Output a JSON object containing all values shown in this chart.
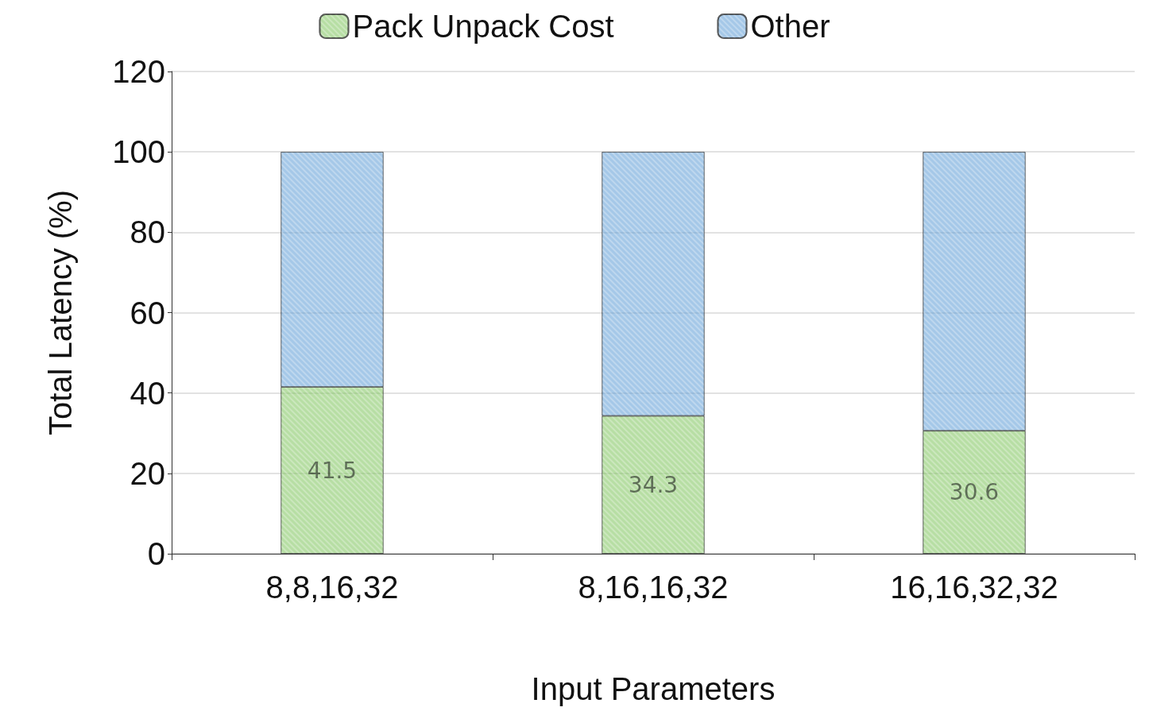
{
  "chart_data": {
    "type": "bar",
    "stacked": true,
    "xlabel": "Input Parameters",
    "ylabel": "Total Latency (%)",
    "categories": [
      "8,8,16,32",
      "8,16,16,32",
      "16,16,32,32"
    ],
    "series": [
      {
        "name": "Pack Unpack Cost",
        "color": "#7cc35a",
        "values": [
          41.5,
          34.3,
          30.6
        ],
        "value_labels": [
          "41.5",
          "34.3",
          "30.6"
        ]
      },
      {
        "name": "Other",
        "color": "#5b9bd5",
        "values": [
          58.5,
          65.7,
          69.4
        ]
      }
    ],
    "ylim": [
      0,
      120
    ],
    "yticks": [
      0,
      20,
      40,
      60,
      80,
      100,
      120
    ],
    "grid": "y",
    "legend": "top"
  }
}
